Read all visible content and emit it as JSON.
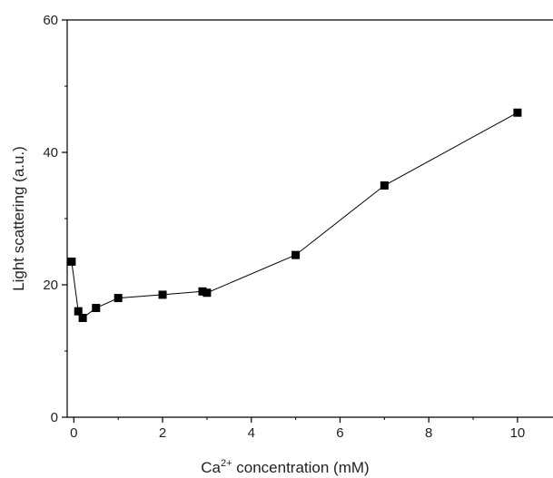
{
  "chart_data": {
    "type": "line",
    "title": "",
    "xlabel": {
      "prefix": "Ca",
      "superscript": "2+",
      "suffix": " concentration (mM)"
    },
    "ylabel": "Light scattering (a.u.)",
    "xlim": [
      -0.15,
      10.8
    ],
    "ylim": [
      0,
      60
    ],
    "xticks": [
      0,
      2,
      4,
      6,
      8,
      10
    ],
    "yticks": [
      0,
      20,
      40,
      60
    ],
    "grid": false,
    "legend": "none",
    "series": [
      {
        "x": [
          -0.05,
          0.1,
          0.2,
          0.5,
          1.0,
          2.0,
          2.9,
          3.0,
          5.0,
          7.0,
          10.0
        ],
        "y": [
          23.5,
          16.0,
          15.0,
          16.5,
          18.0,
          18.5,
          19.0,
          18.8,
          24.5,
          35.0,
          46.0
        ],
        "marker": "square",
        "color": "#000000"
      }
    ]
  }
}
